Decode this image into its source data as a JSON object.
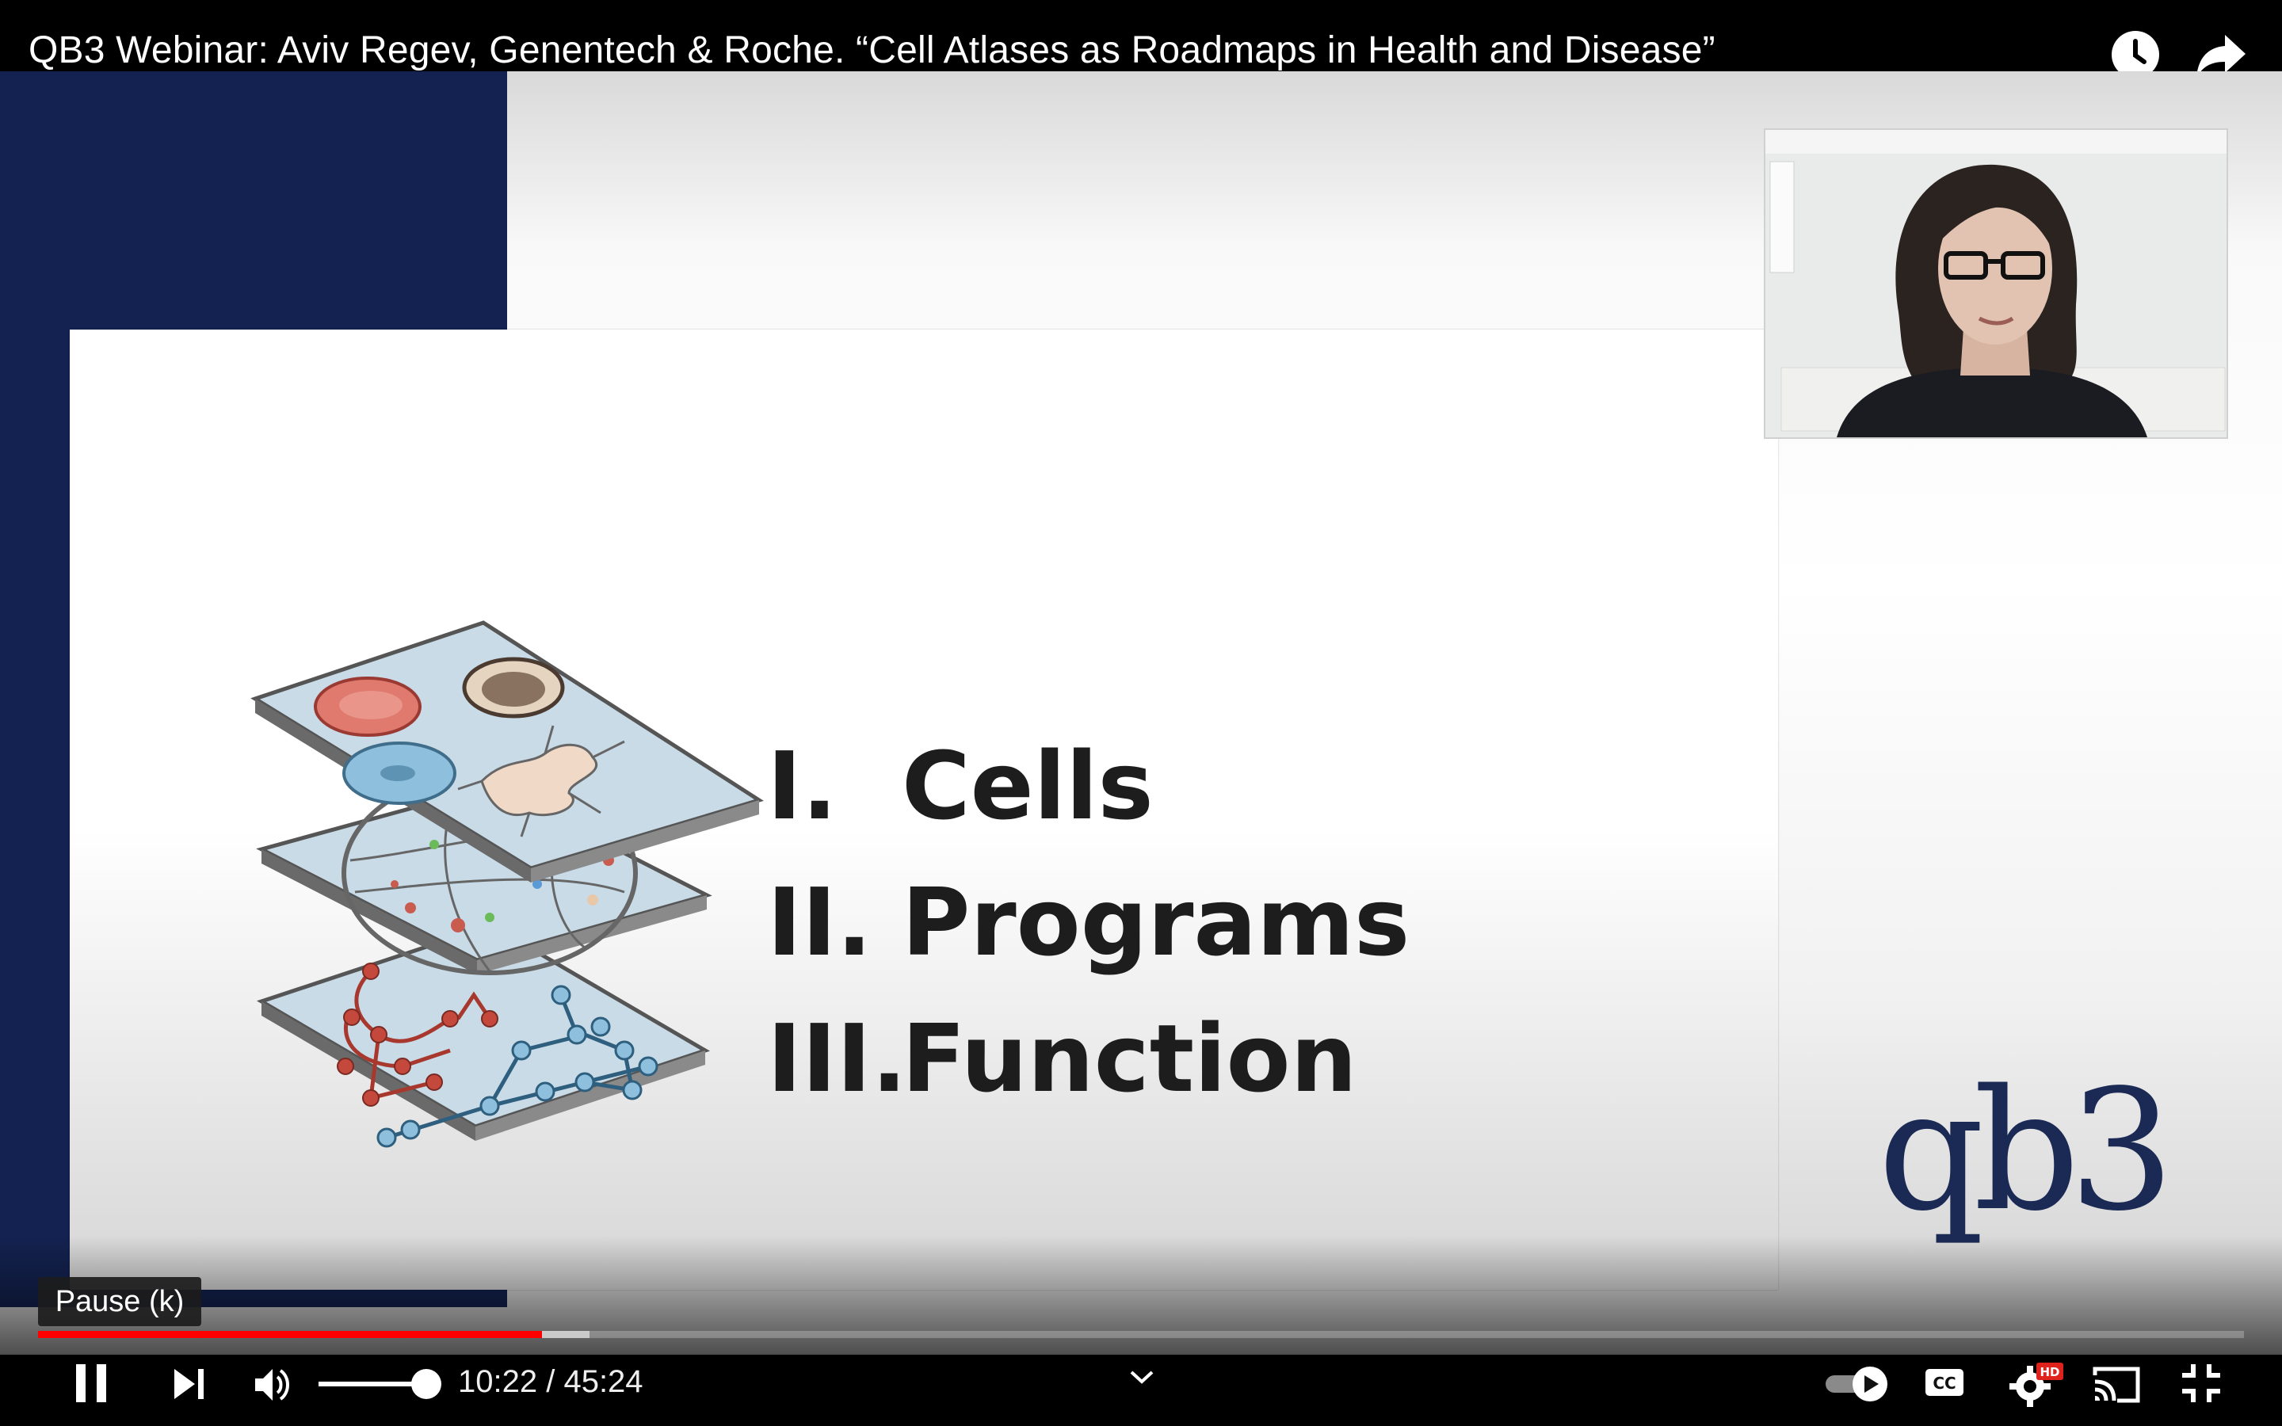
{
  "player": {
    "title": "QB3 Webinar: Aviv Regev, Genentech & Roche. “Cell Atlases as Roadmaps in Health and Disease”"
  },
  "slide": {
    "items": [
      {
        "numeral": "I.",
        "label": "Cells"
      },
      {
        "numeral": "II.",
        "label": "Programs"
      },
      {
        "numeral": "III.",
        "label": "Function"
      }
    ],
    "logo_text": "qb3"
  },
  "controls": {
    "tooltip": "Pause (k)",
    "current_time": "10:22",
    "duration": "45:24",
    "time_separator": " / ",
    "progress_fraction": 0.2286,
    "buffered_fraction": 0.25,
    "volume_fraction": 1.0,
    "hd_badge": "HD",
    "cc_label": "CC"
  },
  "colors": {
    "progress_played": "#ff0000",
    "slide_navy": "#132250",
    "logo": "#1b2a55"
  },
  "icons": [
    "watch-later-icon",
    "share-icon",
    "pause-icon",
    "next-icon",
    "volume-icon",
    "chevron-down-icon",
    "autoplay-toggle-icon",
    "captions-icon",
    "settings-icon",
    "cast-icon",
    "exit-fullscreen-icon"
  ]
}
